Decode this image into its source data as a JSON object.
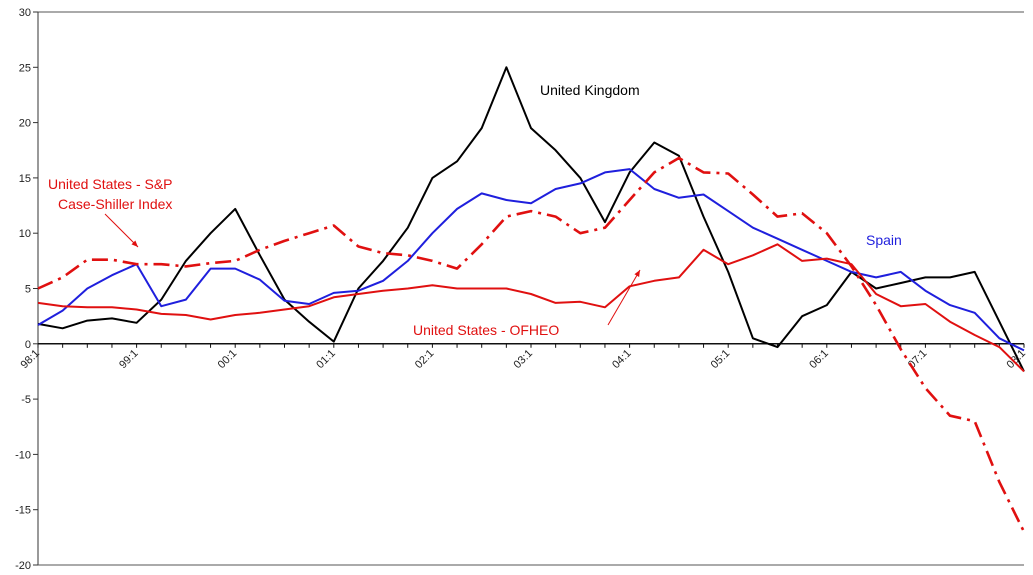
{
  "chart_data": {
    "type": "line",
    "title": "",
    "xlabel": "",
    "ylabel": "",
    "ylim": [
      -20,
      30
    ],
    "yticks": [
      30,
      25,
      20,
      15,
      10,
      5,
      0,
      -5,
      -10,
      -15,
      -20
    ],
    "ytick_labels": [
      "30",
      "25",
      "20",
      "15",
      "10",
      "5",
      "0",
      "-5",
      "-10",
      "-15",
      "-20"
    ],
    "xticks": [
      "98:1",
      "99:1",
      "00:1",
      "01:1",
      "02:1",
      "03:1",
      "04:1",
      "05:1",
      "06:1",
      "07:1",
      "08:1"
    ],
    "x_start_year": 1998,
    "grid": false,
    "legend": "none",
    "series": [
      {
        "name": "United Kingdom",
        "color": "#000000",
        "style": "solid",
        "values": [
          1.8,
          1.4,
          2.1,
          2.3,
          1.9,
          4.0,
          7.5,
          10.0,
          12.2,
          8.0,
          4.0,
          2.0,
          0.2,
          5.0,
          7.5,
          10.5,
          15.0,
          16.5,
          19.5,
          25.0,
          19.5,
          17.5,
          15.0,
          11.0,
          15.5,
          18.2,
          17.0,
          11.5,
          6.5,
          0.5,
          -0.3,
          2.5,
          3.5,
          6.5,
          5.0,
          5.5,
          6.0,
          6.0,
          6.5,
          2.0,
          -2.5
        ]
      },
      {
        "name": "Spain",
        "color": "#1f1fdd",
        "style": "solid",
        "values": [
          1.7,
          3.0,
          5.0,
          6.2,
          7.2,
          3.4,
          4.0,
          6.8,
          6.8,
          5.8,
          3.9,
          3.6,
          4.6,
          4.8,
          5.7,
          7.5,
          10.0,
          12.2,
          13.6,
          13.0,
          12.7,
          14.0,
          14.5,
          15.5,
          15.8,
          14.0,
          13.2,
          13.5,
          12.0,
          10.5,
          9.5,
          8.5,
          7.5,
          6.5,
          6.0,
          6.5,
          4.8,
          3.5,
          2.8,
          0.5,
          -0.6
        ]
      },
      {
        "name": "United States - S&P Case-Shiller Index",
        "color": "#e01010",
        "style": "dashdot",
        "values": [
          5.0,
          6.0,
          7.6,
          7.6,
          7.2,
          7.2,
          7.0,
          7.3,
          7.5,
          8.5,
          9.3,
          10.0,
          10.7,
          8.8,
          8.2,
          8.0,
          7.5,
          6.8,
          9.0,
          11.5,
          12.0,
          11.5,
          10.0,
          10.5,
          13.0,
          15.5,
          16.8,
          15.5,
          15.4,
          13.5,
          11.5,
          11.8,
          10.0,
          7.0,
          3.5,
          -0.5,
          -4.0,
          -6.5,
          -7.0,
          -12.5,
          -17.0
        ]
      },
      {
        "name": "United States - OFHEO",
        "color": "#e01010",
        "style": "solid",
        "values": [
          3.7,
          3.4,
          3.3,
          3.3,
          3.1,
          2.7,
          2.6,
          2.2,
          2.6,
          2.8,
          3.1,
          3.4,
          4.2,
          4.5,
          4.8,
          5.0,
          5.3,
          5.0,
          5.0,
          5.0,
          4.5,
          3.7,
          3.8,
          3.3,
          5.2,
          5.7,
          6.0,
          8.5,
          7.2,
          8.0,
          9.0,
          7.5,
          7.7,
          7.2,
          4.5,
          3.4,
          3.6,
          2.0,
          0.8,
          -0.3,
          -2.5
        ]
      }
    ],
    "annotations": [
      {
        "text": "United Kingdom",
        "color": "#000000"
      },
      {
        "text": "United States - S&P",
        "color": "#e01010"
      },
      {
        "text": "Case-Shiller Index",
        "color": "#e01010"
      },
      {
        "text": "Spain",
        "color": "#1f1fdd"
      },
      {
        "text": "United States - OFHEO",
        "color": "#e01010"
      }
    ]
  }
}
